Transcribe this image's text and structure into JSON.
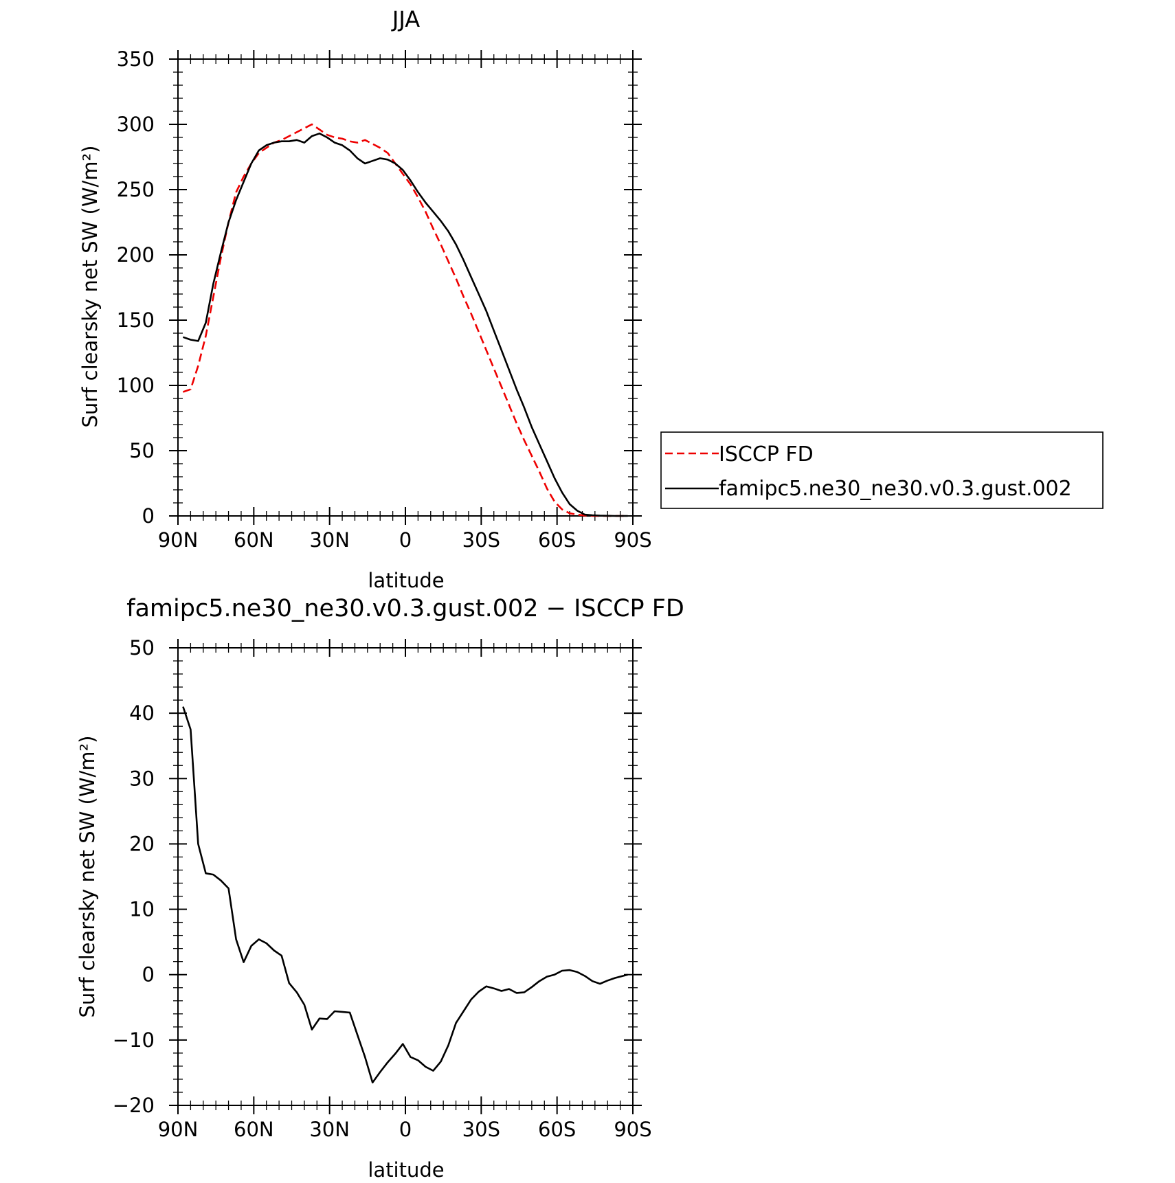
{
  "chart_data": [
    {
      "type": "line",
      "title": "JJA",
      "xlabel": "latitude",
      "ylabel": "Surf clearsky net SW (W/m²)",
      "xlim": [
        90,
        -90
      ],
      "ylim": [
        0,
        350
      ],
      "xticks": [
        90,
        60,
        30,
        0,
        -30,
        -60,
        -90
      ],
      "xtick_labels": [
        "90N",
        "60N",
        "30N",
        "0",
        "30S",
        "60S",
        "90S"
      ],
      "yticks": [
        0,
        50,
        100,
        150,
        200,
        250,
        300,
        350
      ],
      "ytick_labels": [
        "0",
        "50",
        "100",
        "150",
        "200",
        "250",
        "300",
        "350"
      ],
      "grid": false,
      "legend_position": "right",
      "series": [
        {
          "name": "ISCCP FD",
          "color": "#ee0000",
          "dash": "dashed",
          "x": [
            88,
            85,
            82,
            79,
            76,
            73,
            70,
            67,
            64,
            61,
            58,
            55,
            52,
            49,
            46,
            43,
            40,
            37,
            34,
            31,
            28,
            25,
            22,
            19,
            16,
            13,
            10,
            7,
            4,
            1,
            -2,
            -5,
            -8,
            -11,
            -14,
            -17,
            -20,
            -23,
            -26,
            -29,
            -32,
            -35,
            -38,
            -41,
            -44,
            -47,
            -50,
            -53,
            -56,
            -59,
            -62,
            -65,
            -68,
            -71,
            -74,
            -77,
            -80,
            -83,
            -86,
            -88
          ],
          "y": [
            95,
            97,
            115,
            138,
            168,
            198,
            225,
            248,
            260,
            270,
            278,
            282,
            286,
            288,
            291,
            294,
            297,
            300,
            296,
            292,
            290,
            289,
            287,
            286,
            288,
            285,
            282,
            278,
            270,
            262,
            254,
            244,
            233,
            220,
            208,
            195,
            182,
            168,
            155,
            141,
            127,
            113,
            99,
            85,
            71,
            58,
            46,
            34,
            21,
            11,
            5,
            2,
            1,
            0.3,
            0.1,
            0,
            0,
            0,
            0,
            0
          ]
        },
        {
          "name": "famipc5.ne30_ne30.v0.3.gust.002",
          "color": "#000000",
          "dash": "solid",
          "x": [
            88,
            85,
            82,
            79,
            76,
            73,
            70,
            67,
            64,
            61,
            58,
            55,
            52,
            49,
            46,
            43,
            40,
            37,
            34,
            31,
            28,
            25,
            22,
            19,
            16,
            13,
            10,
            7,
            4,
            1,
            -2,
            -5,
            -8,
            -11,
            -14,
            -17,
            -20,
            -23,
            -26,
            -29,
            -32,
            -35,
            -38,
            -41,
            -44,
            -47,
            -50,
            -53,
            -56,
            -59,
            -62,
            -65,
            -68,
            -71,
            -74,
            -77,
            -80,
            -83,
            -86,
            -88
          ],
          "y": [
            137,
            135,
            134,
            148,
            178,
            202,
            225,
            242,
            256,
            270,
            280,
            284,
            286,
            287,
            287,
            288,
            286,
            291,
            293,
            290,
            286,
            284,
            280,
            274,
            270,
            272,
            274,
            273,
            270,
            265,
            257,
            248,
            240,
            233,
            226,
            218,
            208,
            196,
            183,
            170,
            157,
            142,
            127,
            112,
            97,
            83,
            68,
            55,
            42,
            29,
            18,
            9,
            4,
            1,
            0.5,
            0.2,
            0.1,
            0,
            0,
            0
          ]
        }
      ]
    },
    {
      "type": "line",
      "title": "famipc5.ne30_ne30.v0.3.gust.002 − ISCCP FD",
      "xlabel": "latitude",
      "ylabel": "Surf clearsky net SW (W/m²)",
      "xlim": [
        90,
        -90
      ],
      "ylim": [
        -20,
        50
      ],
      "xticks": [
        90,
        60,
        30,
        0,
        -30,
        -60,
        -90
      ],
      "xtick_labels": [
        "90N",
        "60N",
        "30N",
        "0",
        "30S",
        "60S",
        "90S"
      ],
      "yticks": [
        -20,
        -10,
        0,
        10,
        20,
        30,
        40,
        50
      ],
      "ytick_labels": [
        "−20",
        "−10",
        "0",
        "10",
        "20",
        "30",
        "40",
        "50"
      ],
      "grid": false,
      "series": [
        {
          "color": "#000000",
          "dash": "solid",
          "x": [
            88,
            85,
            82,
            79,
            76,
            73,
            70,
            67,
            64,
            61,
            58,
            55,
            52,
            49,
            46,
            43,
            40,
            37,
            34,
            31,
            28,
            25,
            22,
            19,
            16,
            13,
            10,
            7,
            4,
            1,
            -2,
            -5,
            -8,
            -11,
            -14,
            -17,
            -20,
            -23,
            -26,
            -29,
            -32,
            -35,
            -38,
            -41,
            -44,
            -47,
            -50,
            -53,
            -56,
            -59,
            -62,
            -65,
            -68,
            -71,
            -74,
            -77,
            -80,
            -83,
            -86,
            -88
          ],
          "y": [
            41,
            37.5,
            20,
            15.5,
            15.3,
            14.4,
            13.2,
            5.4,
            1.9,
            4.4,
            5.4,
            4.8,
            3.7,
            2.9,
            -1.3,
            -2.7,
            -4.6,
            -8.4,
            -6.7,
            -6.8,
            -5.6,
            -5.7,
            -5.8,
            -9.2,
            -12.6,
            -16.5,
            -14.9,
            -13.4,
            -12.1,
            -10.6,
            -12.6,
            -13.1,
            -14.1,
            -14.7,
            -13.3,
            -10.8,
            -7.4,
            -5.6,
            -3.8,
            -2.6,
            -1.8,
            -2.1,
            -2.5,
            -2.2,
            -2.8,
            -2.7,
            -1.9,
            -1,
            -0.3,
            0,
            0.6,
            0.7,
            0.4,
            -0.2,
            -1,
            -1.4,
            -0.9,
            -0.5,
            -0.2,
            0
          ]
        }
      ]
    }
  ]
}
